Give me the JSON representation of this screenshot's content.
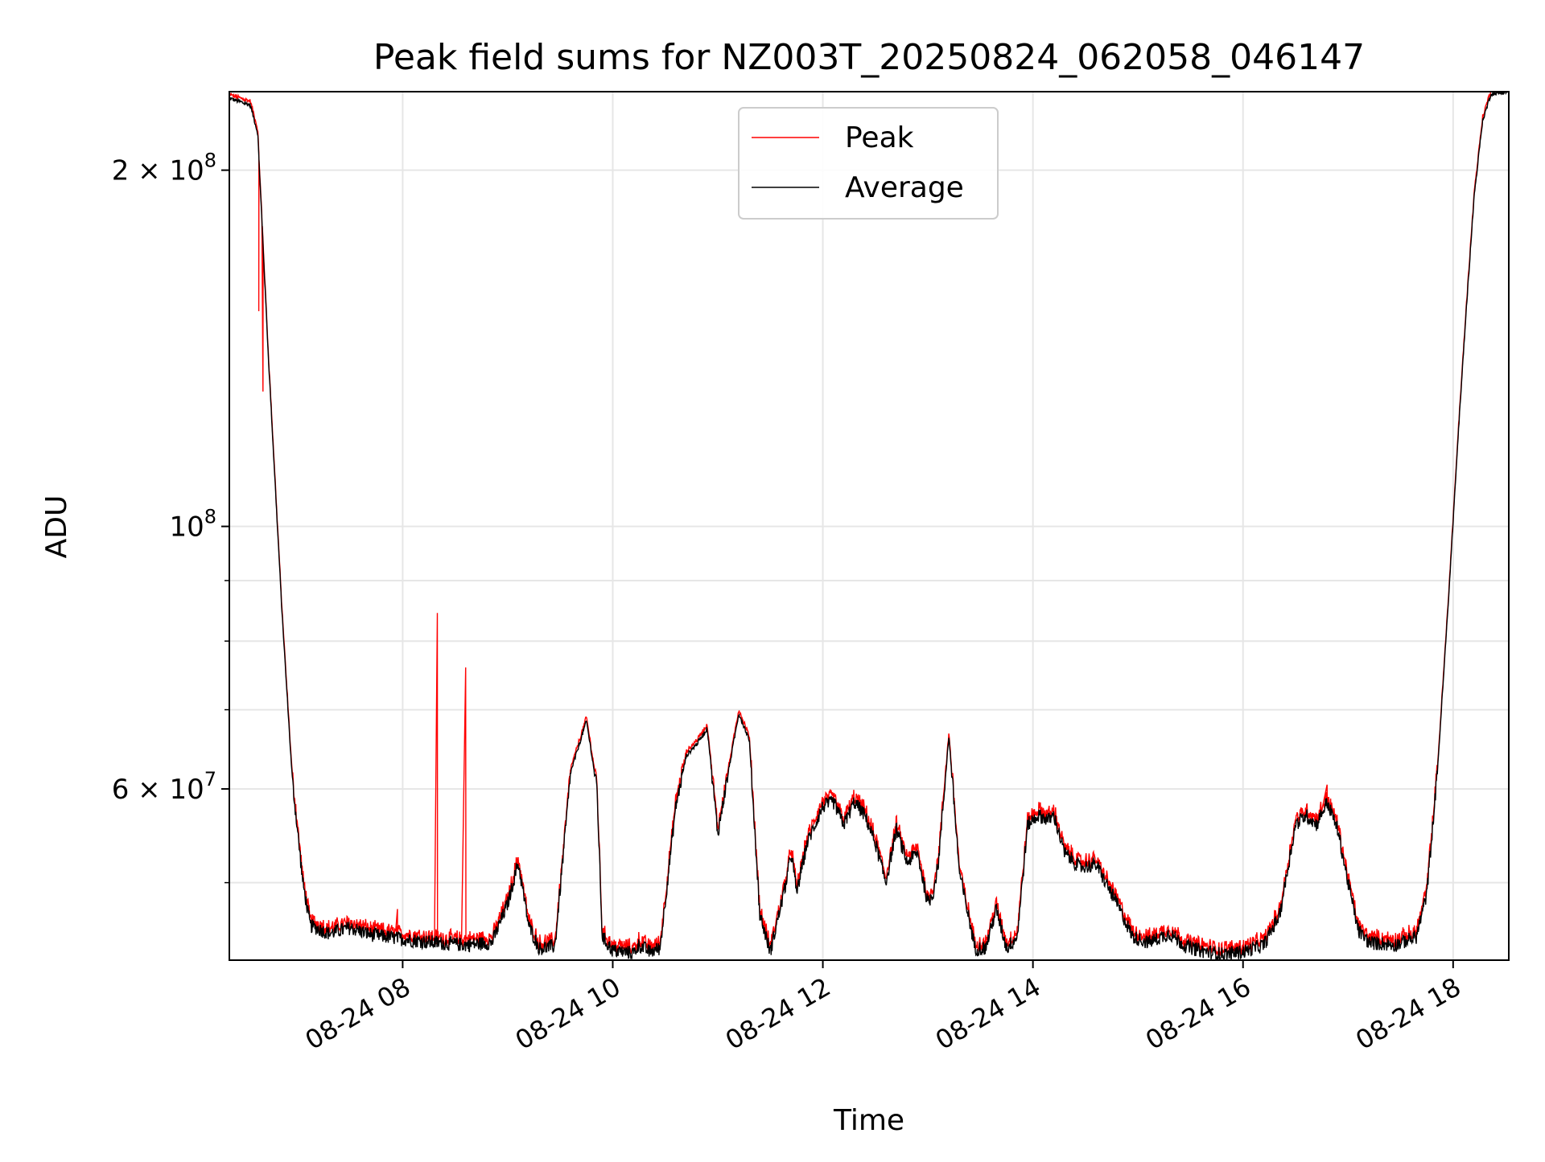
{
  "chart_data": {
    "type": "line",
    "title": "Peak field sums for NZ003T_20250824_062058_046147",
    "xlabel": "Time",
    "ylabel": "ADU",
    "yscale": "log",
    "grid": true,
    "legend_position": "upper center",
    "colors": {
      "Peak": "#ff0000",
      "Average": "#000000",
      "grid": "#e6e6e6"
    },
    "x_ticks": [
      "08-24 08",
      "08-24 10",
      "08-24 12",
      "08-24 14",
      "08-24 16",
      "08-24 18"
    ],
    "x_tick_hours": [
      8,
      10,
      12,
      14,
      16,
      18
    ],
    "xlim_hours": [
      6.35,
      18.53
    ],
    "y_ticks": [
      {
        "value": 200000000,
        "mantissa": "2",
        "exponent": "8"
      },
      {
        "value": 100000000,
        "mantissa": "",
        "exponent": "8"
      },
      {
        "value": 60000000,
        "mantissa": "6",
        "exponent": "7"
      }
    ],
    "y_minor_ticks": [
      50000000,
      70000000,
      80000000,
      90000000
    ],
    "ylim": [
      43000000,
      233000000
    ],
    "avg_anchors": [
      [
        6.35,
        230000000
      ],
      [
        6.55,
        227000000
      ],
      [
        6.62,
        215000000
      ],
      [
        6.72,
        140000000
      ],
      [
        6.85,
        85000000
      ],
      [
        6.95,
        61000000
      ],
      [
        7.05,
        50000000
      ],
      [
        7.12,
        46000000
      ],
      [
        7.3,
        45300000
      ],
      [
        7.5,
        45800000
      ],
      [
        7.7,
        45200000
      ],
      [
        8.0,
        44800000
      ],
      [
        8.3,
        44500000
      ],
      [
        8.6,
        44300000
      ],
      [
        8.85,
        44500000
      ],
      [
        9.0,
        48000000
      ],
      [
        9.1,
        52000000
      ],
      [
        9.2,
        46000000
      ],
      [
        9.3,
        44000000
      ],
      [
        9.45,
        44200000
      ],
      [
        9.6,
        62000000
      ],
      [
        9.75,
        68500000
      ],
      [
        9.85,
        60000000
      ],
      [
        9.9,
        45000000
      ],
      [
        10.0,
        43800000
      ],
      [
        10.2,
        43600000
      ],
      [
        10.25,
        44300000
      ],
      [
        10.35,
        43700000
      ],
      [
        10.45,
        44000000
      ],
      [
        10.6,
        58000000
      ],
      [
        10.7,
        64000000
      ],
      [
        10.8,
        65500000
      ],
      [
        10.9,
        67500000
      ],
      [
        11.0,
        55000000
      ],
      [
        11.1,
        62000000
      ],
      [
        11.2,
        69500000
      ],
      [
        11.3,
        66000000
      ],
      [
        11.4,
        47000000
      ],
      [
        11.5,
        43700000
      ],
      [
        11.65,
        50000000
      ],
      [
        11.7,
        53000000
      ],
      [
        11.75,
        49000000
      ],
      [
        11.85,
        54000000
      ],
      [
        12.0,
        58000000
      ],
      [
        12.1,
        58500000
      ],
      [
        12.2,
        56000000
      ],
      [
        12.3,
        58500000
      ],
      [
        12.4,
        57000000
      ],
      [
        12.5,
        54000000
      ],
      [
        12.6,
        50000000
      ],
      [
        12.7,
        55500000
      ],
      [
        12.8,
        52000000
      ],
      [
        12.9,
        53000000
      ],
      [
        13.0,
        48000000
      ],
      [
        13.05,
        49000000
      ],
      [
        13.1,
        52000000
      ],
      [
        13.2,
        66500000
      ],
      [
        13.3,
        51000000
      ],
      [
        13.45,
        44000000
      ],
      [
        13.55,
        44000000
      ],
      [
        13.65,
        47500000
      ],
      [
        13.75,
        44000000
      ],
      [
        13.85,
        45000000
      ],
      [
        13.95,
        56000000
      ],
      [
        14.05,
        57000000
      ],
      [
        14.15,
        56500000
      ],
      [
        14.2,
        57000000
      ],
      [
        14.3,
        53000000
      ],
      [
        14.45,
        51500000
      ],
      [
        14.6,
        51800000
      ],
      [
        14.8,
        48000000
      ],
      [
        14.95,
        45000000
      ],
      [
        15.1,
        44500000
      ],
      [
        15.3,
        45300000
      ],
      [
        15.45,
        44200000
      ],
      [
        15.6,
        43800000
      ],
      [
        15.8,
        43500000
      ],
      [
        16.0,
        43700000
      ],
      [
        16.2,
        44300000
      ],
      [
        16.35,
        47000000
      ],
      [
        16.5,
        56000000
      ],
      [
        16.6,
        57000000
      ],
      [
        16.7,
        56000000
      ],
      [
        16.8,
        58500000
      ],
      [
        16.9,
        55500000
      ],
      [
        17.0,
        50000000
      ],
      [
        17.1,
        45500000
      ],
      [
        17.2,
        44500000
      ],
      [
        17.45,
        44300000
      ],
      [
        17.65,
        45000000
      ],
      [
        17.75,
        49000000
      ],
      [
        17.85,
        62000000
      ],
      [
        17.95,
        85000000
      ],
      [
        18.05,
        120000000
      ],
      [
        18.12,
        150000000
      ],
      [
        18.2,
        190000000
      ],
      [
        18.28,
        220000000
      ],
      [
        18.36,
        232000000
      ],
      [
        18.53,
        233000000
      ]
    ],
    "peak_spikes": [
      [
        6.63,
        152000000
      ],
      [
        6.67,
        130000000
      ],
      [
        7.95,
        47500000
      ],
      [
        8.33,
        84500000
      ],
      [
        8.6,
        76000000
      ],
      [
        16.8,
        60500000
      ]
    ]
  }
}
